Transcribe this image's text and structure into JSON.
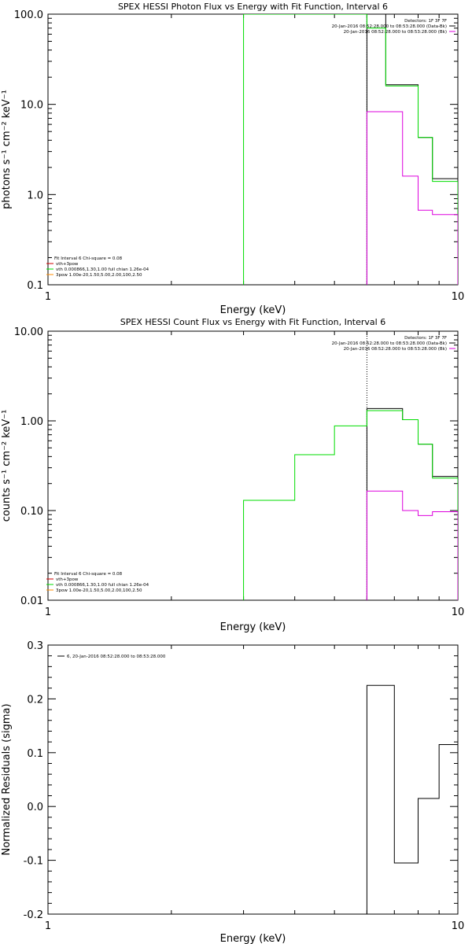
{
  "colors": {
    "black": "#000000",
    "red": "#d00000",
    "green": "#00dd00",
    "magenta": "#dd00dd",
    "orange": "#ff8c00"
  },
  "chart_data": [
    {
      "type": "line",
      "title": "SPEX HESSI Photon Flux vs Energy with Fit Function, Interval 6",
      "xlabel": "Energy (keV)",
      "ylabel": "photons s⁻¹ cm⁻² keV⁻¹",
      "xscale": "log",
      "yscale": "log",
      "xlim": [
        1,
        10
      ],
      "ylim": [
        0.1,
        100
      ],
      "xticks": [
        {
          "v": 1,
          "label": "1"
        },
        {
          "v": 10,
          "label": "10"
        }
      ],
      "yticks": [
        {
          "v": 0.1,
          "label": "0.1"
        },
        {
          "v": 1,
          "label": "1.0"
        },
        {
          "v": 10,
          "label": "10.0"
        },
        {
          "v": 100,
          "label": "100.0"
        }
      ],
      "header": [
        "Detectors: 1F 3F 7F",
        "20-Jan-2016 08:52:28.000 to 08:53:28.000 (Data-Bk)",
        "20-Jan-2016 08:52:28.000 to 08:53:28.000 (Bk)"
      ],
      "header_colors": [
        "#000000",
        "#000000",
        "#dd00dd"
      ],
      "legend": [
        "Fit Interval 6   Chi-square = 0.08",
        "vth+3pow",
        "vth 0.000866,1.30,1.00   full chian 1.26e-04",
        "3pow 1.00e-20,1.50,5.00,2.00,100,2.50"
      ],
      "legend_colors": [
        "#000000",
        "#d00000",
        "#00dd00",
        "#ff8c00"
      ],
      "vline": 6.0,
      "series": [
        {
          "name": "20-Jan-2016 08:52:28.000 to 08:53:28.000 (Data-Bk)",
          "color": "#000000",
          "edges": [
            6.0,
            6.67,
            7.33,
            8.0,
            8.67,
            9.33,
            10.0
          ],
          "values": [
            100,
            16.5,
            16.5,
            4.3,
            1.5,
            1.5
          ]
        },
        {
          "name": "vth+3pow",
          "color": "#00dd00",
          "edges": [
            3.0,
            4.0,
            5.0,
            6.0,
            6.67,
            7.33,
            8.0,
            8.67,
            9.33,
            10.0
          ],
          "values": [
            100,
            100,
            100,
            70,
            16.0,
            16.0,
            4.3,
            1.4,
            1.4
          ]
        },
        {
          "name": "20-Jan-2016 08:52:28.000 to 08:53:28.000 (Bk)",
          "color": "#dd00dd",
          "edges": [
            6.0,
            6.67,
            7.33,
            8.0,
            8.67,
            9.33,
            10.0
          ],
          "values": [
            8.3,
            8.3,
            1.6,
            0.67,
            0.6,
            0.6
          ]
        }
      ]
    },
    {
      "type": "line",
      "title": "SPEX HESSI Count Flux vs Energy with Fit Function, Interval 6",
      "xlabel": "Energy (keV)",
      "ylabel": "counts s⁻¹ cm⁻² keV⁻¹",
      "xscale": "log",
      "yscale": "log",
      "xlim": [
        1,
        10
      ],
      "ylim": [
        0.01,
        10
      ],
      "xticks": [
        {
          "v": 1,
          "label": "1"
        },
        {
          "v": 10,
          "label": "10"
        }
      ],
      "yticks": [
        {
          "v": 0.01,
          "label": "0.01"
        },
        {
          "v": 0.1,
          "label": "0.10"
        },
        {
          "v": 1,
          "label": "1.00"
        },
        {
          "v": 10,
          "label": "10.00"
        }
      ],
      "header": [
        "Detectors: 1F 3F 7F",
        "20-Jan-2016 08:52:28.000 to 08:53:28.000 (Data-Bk)",
        "20-Jan-2016 08:52:28.000 to 08:53:28.000 (Bk)"
      ],
      "header_colors": [
        "#000000",
        "#000000",
        "#dd00dd"
      ],
      "legend": [
        "Fit Interval 6   Chi-square = 0.08",
        "vth+3pow",
        "vth 0.000866,1.30,1.00   full chian 1.26e-04",
        "3pow 1.00e-20,1.50,5.00,2.00,100,2.50"
      ],
      "legend_colors": [
        "#000000",
        "#d00000",
        "#00dd00",
        "#ff8c00"
      ],
      "vline": 6.0,
      "series": [
        {
          "name": "20-Jan-2016 08:52:28.000 to 08:53:28.000 (Data-Bk)",
          "color": "#000000",
          "edges": [
            6.0,
            6.67,
            7.33,
            8.0,
            8.67,
            9.33,
            10.0
          ],
          "values": [
            1.37,
            1.37,
            1.03,
            0.55,
            0.24,
            0.24
          ]
        },
        {
          "name": "vth+3pow",
          "color": "#00dd00",
          "edges": [
            3.0,
            4.0,
            5.0,
            6.0,
            6.67,
            7.33,
            8.0,
            8.67,
            9.33,
            10.0
          ],
          "values": [
            0.13,
            0.42,
            0.88,
            1.3,
            1.3,
            1.03,
            0.55,
            0.23,
            0.23
          ]
        },
        {
          "name": "20-Jan-2016 08:52:28.000 to 08:53:28.000 (Bk)",
          "color": "#dd00dd",
          "edges": [
            6.0,
            6.67,
            7.33,
            8.0,
            8.67,
            9.33,
            10.0
          ],
          "values": [
            0.165,
            0.165,
            0.1,
            0.088,
            0.097,
            0.097
          ]
        }
      ]
    },
    {
      "type": "line",
      "title": "",
      "xlabel": "Energy (keV)",
      "ylabel": "Normalized Residuals (sigma)",
      "xscale": "log",
      "yscale": "linear",
      "xlim": [
        1,
        10
      ],
      "ylim": [
        -0.2,
        0.3
      ],
      "xticks": [
        {
          "v": 1,
          "label": "1"
        },
        {
          "v": 10,
          "label": "10"
        }
      ],
      "yticks": [
        {
          "v": -0.2,
          "label": "-0.2"
        },
        {
          "v": -0.1,
          "label": "-0.1"
        },
        {
          "v": 0.0,
          "label": "0.0"
        },
        {
          "v": 0.1,
          "label": "0.1"
        },
        {
          "v": 0.2,
          "label": "0.2"
        },
        {
          "v": 0.3,
          "label": "0.3"
        }
      ],
      "header": [],
      "header_colors": [],
      "legend": [
        "6, 20-Jan-2016 08:52:28.000 to 08:53:28.000"
      ],
      "legend_colors": [
        "#000000"
      ],
      "vline": null,
      "series": [
        {
          "name": "6, 20-Jan-2016 08:52:28.000 to 08:53:28.000",
          "color": "#000000",
          "edges": [
            6.0,
            7.0,
            8.0,
            9.0,
            10.0
          ],
          "values": [
            0.225,
            -0.105,
            0.015,
            0.115
          ],
          "baseline": -0.2
        }
      ]
    }
  ]
}
